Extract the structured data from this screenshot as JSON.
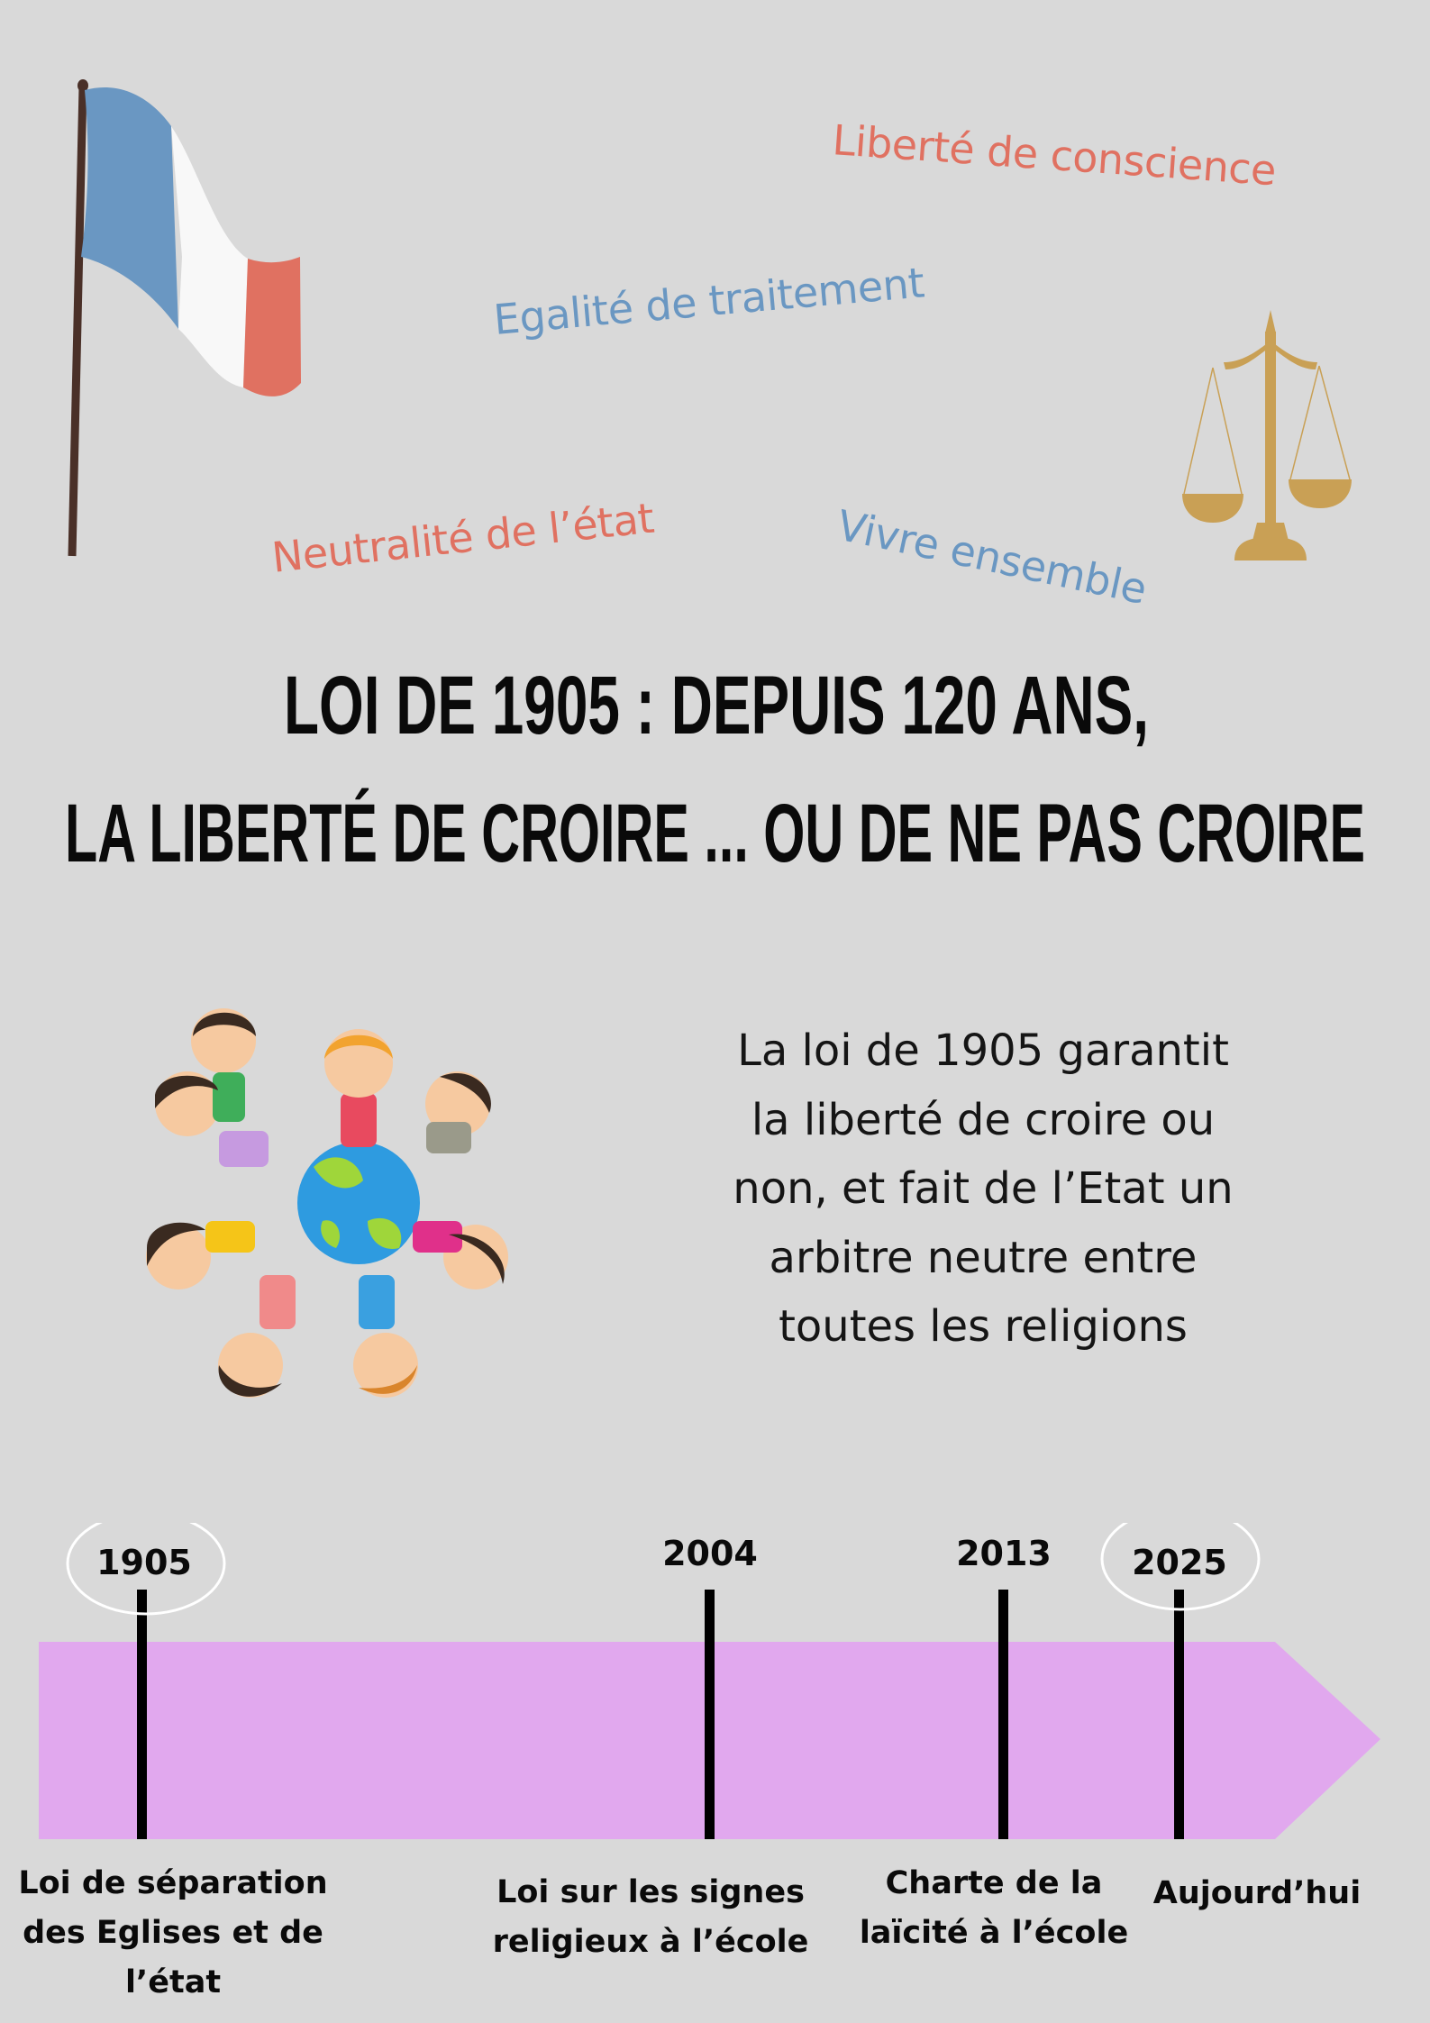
{
  "keywords": {
    "liberte": "Liberté de conscience",
    "egalite": "Egalité de traitement",
    "neutralite": "Neutralité de l’état",
    "vivre": "Vivre ensemble"
  },
  "title": {
    "line1": "LOI DE 1905 : DEPUIS 120 ANS,",
    "line2": "LA LIBERTÉ DE CROIRE ... OU DE NE PAS CROIRE"
  },
  "intro": {
    "lines": [
      "La loi de 1905 garantit",
      "la liberté de croire ou",
      "non, et fait de l’Etat un",
      "arbitre neutre entre",
      "toutes les religions"
    ]
  },
  "timeline": {
    "events": [
      {
        "year": "1905",
        "label_lines": [
          "Loi de séparation",
          "des Eglises et de",
          "l’état"
        ],
        "circled": true
      },
      {
        "year": "2004",
        "label_lines": [
          "Loi sur les signes",
          "religieux à l’école"
        ],
        "circled": false
      },
      {
        "year": "2013",
        "label_lines": [
          "Charte de la",
          "laïcité à l’école"
        ],
        "circled": false
      },
      {
        "year": "2025",
        "label_lines": [
          "Aujourd’hui"
        ],
        "circled": true
      }
    ]
  },
  "colors": {
    "background": "#d9d9d9",
    "red": "#e07161",
    "blue": "#6a97c2",
    "gold": "#c9a055",
    "timeline_band": "#e1a8ee"
  },
  "icons": [
    "french-flag-icon",
    "scales-of-justice-icon",
    "children-around-globe-illustration"
  ]
}
